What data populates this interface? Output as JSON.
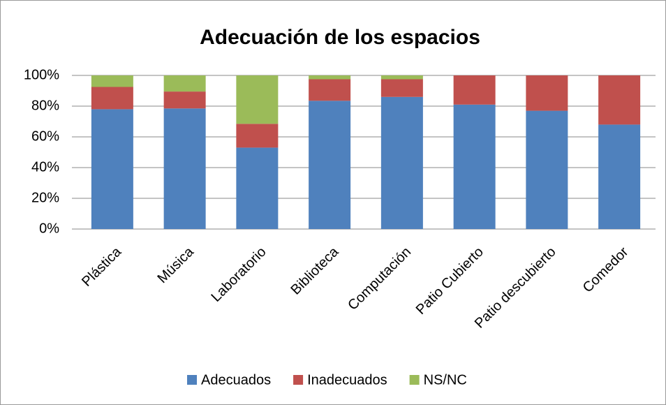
{
  "chart_data": {
    "type": "stacked_bar",
    "title": "Adecuación de los espacios",
    "categories": [
      "Plástica",
      "Música",
      "Laboratorio",
      "Biblioteca",
      "Computación",
      "Patio Cubierto",
      "Patio descubierto",
      "Comedor"
    ],
    "series": [
      {
        "name": "Adecuados",
        "color": "#4f81bd",
        "values": [
          78,
          78.5,
          53,
          83.5,
          86,
          81,
          77,
          68
        ]
      },
      {
        "name": "Inadecuados",
        "color": "#c0504d",
        "values": [
          14.5,
          11,
          15.5,
          14,
          11.5,
          19,
          23,
          32
        ]
      },
      {
        "name": "NS/NC",
        "color": "#9bbb59",
        "values": [
          7.5,
          10.5,
          31.5,
          2.5,
          2.5,
          0,
          0,
          0
        ]
      }
    ],
    "ylim": [
      0,
      100
    ],
    "yticks": [
      {
        "value": 0,
        "label": "0%"
      },
      {
        "value": 20,
        "label": "20%"
      },
      {
        "value": 40,
        "label": "40%"
      },
      {
        "value": 60,
        "label": "60%"
      },
      {
        "value": 80,
        "label": "80%"
      },
      {
        "value": 100,
        "label": "100%"
      }
    ],
    "grid": true,
    "legend": "bottom"
  }
}
